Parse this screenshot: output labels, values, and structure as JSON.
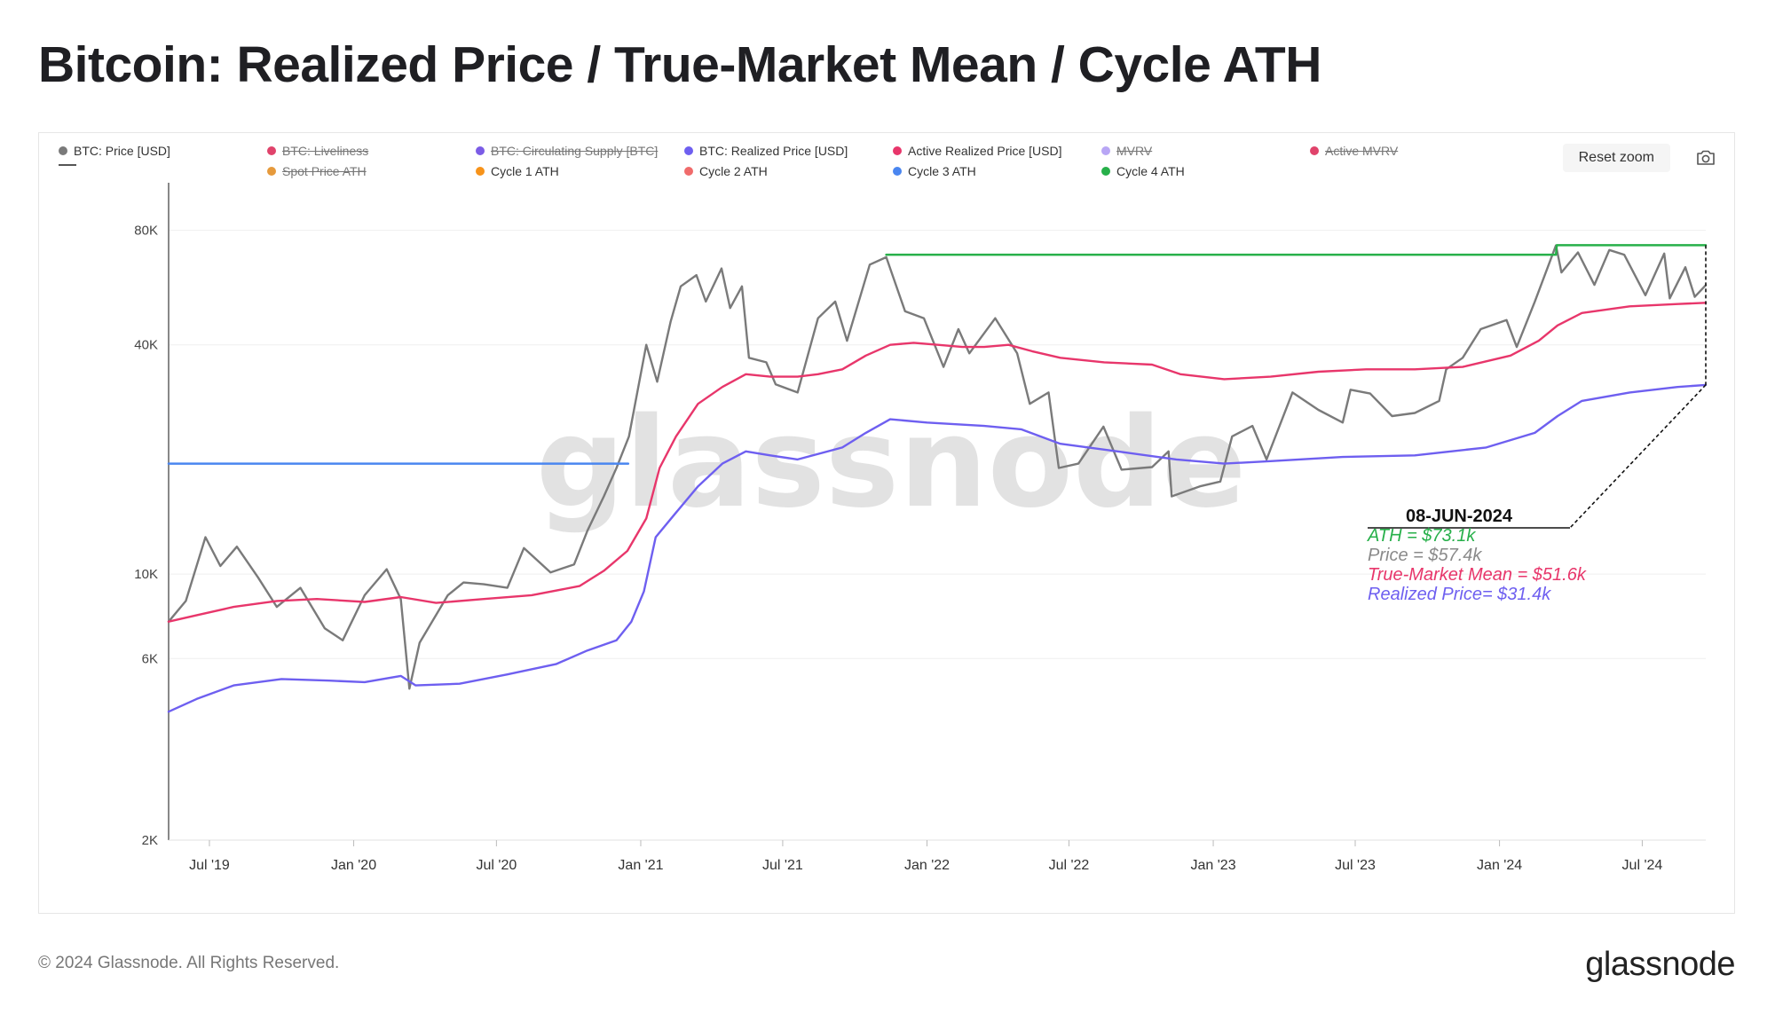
{
  "title": "Bitcoin: Realized Price / True-Market Mean / Cycle ATH",
  "legend": [
    {
      "label": "BTC: Price [USD]",
      "color": "#7a7a7a",
      "active": true
    },
    {
      "label": "BTC: Liveliness",
      "color": "#e0436b",
      "active": false
    },
    {
      "label": "BTC: Circulating Supply [BTC]",
      "color": "#7b5ce6",
      "active": false
    },
    {
      "label": "BTC: Realized Price [USD]",
      "color": "#6e5ff0",
      "active": true
    },
    {
      "label": "Active Realized Price [USD]",
      "color": "#e8366b",
      "active": true
    },
    {
      "label": "MVRV",
      "color": "#b8a6f5",
      "active": false
    },
    {
      "label": "Active MVRV",
      "color": "#e0436b",
      "active": false
    },
    {
      "label": "",
      "color": "#555555",
      "active": true
    },
    {
      "label": "Spot Price ATH",
      "color": "#e69a3c",
      "active": false
    },
    {
      "label": "Cycle 1 ATH",
      "color": "#f7931a",
      "active": true
    },
    {
      "label": "Cycle 2 ATH",
      "color": "#f06b6b",
      "active": true
    },
    {
      "label": "Cycle 3 ATH",
      "color": "#4a86f0",
      "active": true
    },
    {
      "label": "Cycle 4 ATH",
      "color": "#27b04a",
      "active": true
    }
  ],
  "reset_zoom_label": "Reset zoom",
  "watermark": "glassnode",
  "annotation": {
    "date": "08-JUN-2024",
    "ath": "ATH = $73.1k",
    "price": "Price = $57.4k",
    "tmm": "True-Market Mean = $51.6k",
    "realized": "Realized Price= $31.4k"
  },
  "footer": {
    "copyright": "© 2024 Glassnode. All Rights Reserved.",
    "logo": "glassnode"
  },
  "chart_data": {
    "type": "line",
    "y_scale": "log",
    "ylim": [
      2000,
      100000
    ],
    "y_ticks": [
      {
        "value": 2000,
        "label": "2K"
      },
      {
        "value": 6000,
        "label": "6K"
      },
      {
        "value": 10000,
        "label": "10K"
      },
      {
        "value": 40000,
        "label": "40K"
      },
      {
        "value": 80000,
        "label": "80K"
      }
    ],
    "xlim": [
      "2019-05-10",
      "2024-09-20"
    ],
    "x_ticks": [
      {
        "date": "2019-07-01",
        "label": "Jul '19"
      },
      {
        "date": "2020-01-01",
        "label": "Jan '20"
      },
      {
        "date": "2020-07-01",
        "label": "Jul '20"
      },
      {
        "date": "2021-01-01",
        "label": "Jan '21"
      },
      {
        "date": "2021-07-01",
        "label": "Jul '21"
      },
      {
        "date": "2022-01-01",
        "label": "Jan '22"
      },
      {
        "date": "2022-07-01",
        "label": "Jul '22"
      },
      {
        "date": "2023-01-01",
        "label": "Jan '23"
      },
      {
        "date": "2023-07-01",
        "label": "Jul '23"
      },
      {
        "date": "2024-01-01",
        "label": "Jan '24"
      },
      {
        "date": "2024-07-01",
        "label": "Jul '24"
      }
    ],
    "grid": "horizontal",
    "legend_position": "top",
    "series": [
      {
        "name": "BTC: Price [USD]",
        "color": "#7a7a7a",
        "points": [
          [
            "2019-05-10",
            7500
          ],
          [
            "2019-06-01",
            8500
          ],
          [
            "2019-06-26",
            12500
          ],
          [
            "2019-07-15",
            10500
          ],
          [
            "2019-08-05",
            11800
          ],
          [
            "2019-09-01",
            9800
          ],
          [
            "2019-09-25",
            8200
          ],
          [
            "2019-10-25",
            9200
          ],
          [
            "2019-11-25",
            7200
          ],
          [
            "2019-12-18",
            6700
          ],
          [
            "2020-01-15",
            8800
          ],
          [
            "2020-02-12",
            10300
          ],
          [
            "2020-03-01",
            8600
          ],
          [
            "2020-03-12",
            5000
          ],
          [
            "2020-03-25",
            6600
          ],
          [
            "2020-04-30",
            8800
          ],
          [
            "2020-05-20",
            9500
          ],
          [
            "2020-06-15",
            9400
          ],
          [
            "2020-07-15",
            9200
          ],
          [
            "2020-08-05",
            11700
          ],
          [
            "2020-09-08",
            10100
          ],
          [
            "2020-10-08",
            10600
          ],
          [
            "2020-10-25",
            13000
          ],
          [
            "2020-11-15",
            16000
          ],
          [
            "2020-12-01",
            19000
          ],
          [
            "2020-12-17",
            23000
          ],
          [
            "2021-01-08",
            40000
          ],
          [
            "2021-01-22",
            32000
          ],
          [
            "2021-02-08",
            46000
          ],
          [
            "2021-02-21",
            57000
          ],
          [
            "2021-03-13",
            61000
          ],
          [
            "2021-03-25",
            52000
          ],
          [
            "2021-04-14",
            63500
          ],
          [
            "2021-04-25",
            50000
          ],
          [
            "2021-05-10",
            57000
          ],
          [
            "2021-05-19",
            37000
          ],
          [
            "2021-06-10",
            36000
          ],
          [
            "2021-06-22",
            31500
          ],
          [
            "2021-07-20",
            30000
          ],
          [
            "2021-08-15",
            47000
          ],
          [
            "2021-09-06",
            52000
          ],
          [
            "2021-09-21",
            41000
          ],
          [
            "2021-10-20",
            65000
          ],
          [
            "2021-11-10",
            68000
          ],
          [
            "2021-12-04",
            49000
          ],
          [
            "2021-12-28",
            47000
          ],
          [
            "2022-01-22",
            35000
          ],
          [
            "2022-02-10",
            44000
          ],
          [
            "2022-02-24",
            38000
          ],
          [
            "2022-03-29",
            47000
          ],
          [
            "2022-04-26",
            38000
          ],
          [
            "2022-05-12",
            28000
          ],
          [
            "2022-06-05",
            30000
          ],
          [
            "2022-06-18",
            19000
          ],
          [
            "2022-07-13",
            19500
          ],
          [
            "2022-08-14",
            24400
          ],
          [
            "2022-09-06",
            18800
          ],
          [
            "2022-10-15",
            19100
          ],
          [
            "2022-11-05",
            21000
          ],
          [
            "2022-11-09",
            16000
          ],
          [
            "2022-12-15",
            17000
          ],
          [
            "2023-01-10",
            17500
          ],
          [
            "2023-01-25",
            23000
          ],
          [
            "2023-02-20",
            24500
          ],
          [
            "2023-03-10",
            20000
          ],
          [
            "2023-04-12",
            30000
          ],
          [
            "2023-05-15",
            27000
          ],
          [
            "2023-06-15",
            25000
          ],
          [
            "2023-06-25",
            30500
          ],
          [
            "2023-07-20",
            29800
          ],
          [
            "2023-08-17",
            26000
          ],
          [
            "2023-09-15",
            26500
          ],
          [
            "2023-10-16",
            28500
          ],
          [
            "2023-10-25",
            34500
          ],
          [
            "2023-11-15",
            37000
          ],
          [
            "2023-12-08",
            44000
          ],
          [
            "2024-01-10",
            46500
          ],
          [
            "2024-01-23",
            39500
          ],
          [
            "2024-02-15",
            52000
          ],
          [
            "2024-03-13",
            73000
          ],
          [
            "2024-03-20",
            62000
          ],
          [
            "2024-04-10",
            70000
          ],
          [
            "2024-05-01",
            57500
          ],
          [
            "2024-05-20",
            71000
          ],
          [
            "2024-06-08",
            69000
          ],
          [
            "2024-07-05",
            54000
          ],
          [
            "2024-07-29",
            69500
          ],
          [
            "2024-08-05",
            53000
          ],
          [
            "2024-08-25",
            64000
          ],
          [
            "2024-09-06",
            53500
          ],
          [
            "2024-09-20",
            57400
          ]
        ]
      },
      {
        "name": "Active Realized Price [USD]",
        "color": "#e8366b",
        "points": [
          [
            "2019-05-10",
            7500
          ],
          [
            "2019-06-15",
            7800
          ],
          [
            "2019-08-01",
            8200
          ],
          [
            "2019-09-25",
            8500
          ],
          [
            "2019-11-15",
            8600
          ],
          [
            "2020-01-15",
            8450
          ],
          [
            "2020-03-01",
            8700
          ],
          [
            "2020-04-15",
            8400
          ],
          [
            "2020-06-15",
            8600
          ],
          [
            "2020-08-15",
            8800
          ],
          [
            "2020-10-15",
            9300
          ],
          [
            "2020-11-15",
            10200
          ],
          [
            "2020-12-15",
            11500
          ],
          [
            "2021-01-08",
            14000
          ],
          [
            "2021-01-25",
            19000
          ],
          [
            "2021-02-15",
            23000
          ],
          [
            "2021-03-15",
            28000
          ],
          [
            "2021-04-15",
            31000
          ],
          [
            "2021-05-15",
            33500
          ],
          [
            "2021-06-15",
            33000
          ],
          [
            "2021-07-20",
            33000
          ],
          [
            "2021-08-15",
            33500
          ],
          [
            "2021-09-15",
            34500
          ],
          [
            "2021-10-15",
            37500
          ],
          [
            "2021-11-15",
            40000
          ],
          [
            "2021-12-15",
            40500
          ],
          [
            "2022-01-15",
            40000
          ],
          [
            "2022-02-15",
            39500
          ],
          [
            "2022-03-15",
            39500
          ],
          [
            "2022-04-15",
            40000
          ],
          [
            "2022-05-15",
            38500
          ],
          [
            "2022-06-20",
            37000
          ],
          [
            "2022-08-15",
            36000
          ],
          [
            "2022-10-15",
            35500
          ],
          [
            "2022-11-20",
            33500
          ],
          [
            "2023-01-15",
            32500
          ],
          [
            "2023-03-15",
            33000
          ],
          [
            "2023-05-15",
            34000
          ],
          [
            "2023-07-15",
            34500
          ],
          [
            "2023-09-15",
            34500
          ],
          [
            "2023-11-15",
            35000
          ],
          [
            "2024-01-15",
            37500
          ],
          [
            "2024-02-20",
            41000
          ],
          [
            "2024-03-15",
            45000
          ],
          [
            "2024-04-15",
            48500
          ],
          [
            "2024-06-15",
            50500
          ],
          [
            "2024-08-15",
            51200
          ],
          [
            "2024-09-20",
            51600
          ]
        ]
      },
      {
        "name": "BTC: Realized Price [USD]",
        "color": "#6e5ff0",
        "points": [
          [
            "2019-05-10",
            4350
          ],
          [
            "2019-06-15",
            4700
          ],
          [
            "2019-08-01",
            5100
          ],
          [
            "2019-10-01",
            5300
          ],
          [
            "2019-12-01",
            5250
          ],
          [
            "2020-01-15",
            5200
          ],
          [
            "2020-03-01",
            5400
          ],
          [
            "2020-03-20",
            5100
          ],
          [
            "2020-05-15",
            5150
          ],
          [
            "2020-07-15",
            5450
          ],
          [
            "2020-09-15",
            5800
          ],
          [
            "2020-10-25",
            6300
          ],
          [
            "2020-12-01",
            6700
          ],
          [
            "2020-12-20",
            7500
          ],
          [
            "2021-01-05",
            9000
          ],
          [
            "2021-01-20",
            12500
          ],
          [
            "2021-02-15",
            14500
          ],
          [
            "2021-03-15",
            17000
          ],
          [
            "2021-04-15",
            19500
          ],
          [
            "2021-05-15",
            21000
          ],
          [
            "2021-06-15",
            20500
          ],
          [
            "2021-07-20",
            20000
          ],
          [
            "2021-09-15",
            21500
          ],
          [
            "2021-10-15",
            23500
          ],
          [
            "2021-11-15",
            25500
          ],
          [
            "2022-01-01",
            25000
          ],
          [
            "2022-03-15",
            24500
          ],
          [
            "2022-05-01",
            24000
          ],
          [
            "2022-06-20",
            22000
          ],
          [
            "2022-09-01",
            21000
          ],
          [
            "2022-11-15",
            20000
          ],
          [
            "2023-01-15",
            19500
          ],
          [
            "2023-03-15",
            19800
          ],
          [
            "2023-06-15",
            20300
          ],
          [
            "2023-09-15",
            20500
          ],
          [
            "2023-12-15",
            21500
          ],
          [
            "2024-02-15",
            23500
          ],
          [
            "2024-03-15",
            26000
          ],
          [
            "2024-04-15",
            28500
          ],
          [
            "2024-06-15",
            30000
          ],
          [
            "2024-08-15",
            31000
          ],
          [
            "2024-09-20",
            31400
          ]
        ]
      },
      {
        "name": "Cycle 3 ATH",
        "color": "#4a86f0",
        "points": [
          [
            "2019-05-10",
            19500
          ],
          [
            "2020-12-16",
            19500
          ]
        ]
      },
      {
        "name": "Cycle 4 ATH",
        "color": "#27b04a",
        "points": [
          [
            "2021-11-10",
            69000
          ],
          [
            "2024-03-13",
            69000
          ],
          [
            "2024-03-14",
            73100
          ],
          [
            "2024-09-20",
            73100
          ]
        ]
      }
    ]
  }
}
